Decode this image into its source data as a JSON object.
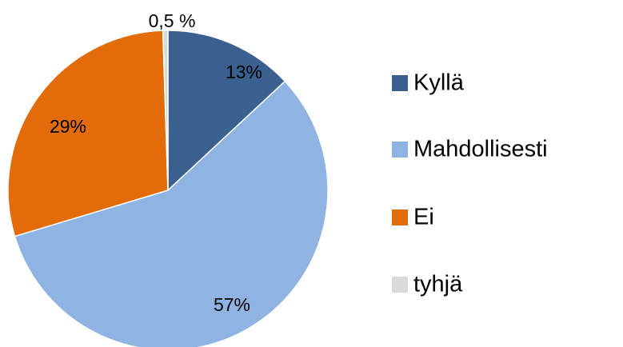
{
  "chart_data": {
    "type": "pie",
    "categories": [
      "Kyllä",
      "Mahdollisesti",
      "Ei",
      "tyhjä"
    ],
    "values": [
      13,
      57,
      29,
      0.5
    ],
    "value_labels": [
      "13%",
      "57%",
      "29%",
      "0,5 %"
    ],
    "colors": [
      "#3a6090",
      "#8fb4e3",
      "#e36c0a",
      "#d9d9d9"
    ],
    "legend": "right"
  }
}
